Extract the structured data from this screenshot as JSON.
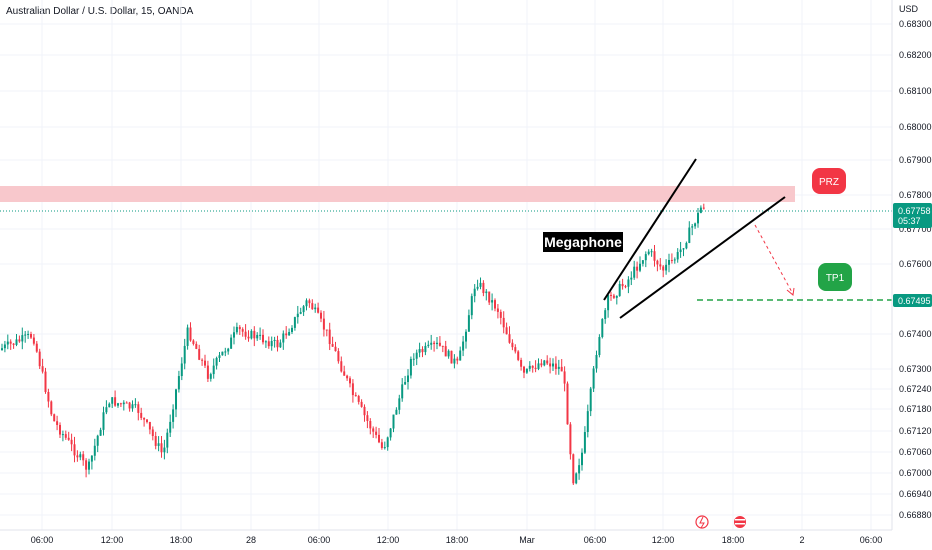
{
  "header": {
    "title": "Australian Dollar / U.S. Dollar, 15, OANDA",
    "currency": "USD"
  },
  "chart_data": {
    "type": "candlestick",
    "y_ticks": [
      "0.68300",
      "0.68200",
      "0.68100",
      "0.68000",
      "0.67900",
      "0.67800",
      "0.67700",
      "0.67600",
      "0.67400",
      "0.67300",
      "0.67240",
      "0.67180",
      "0.67120",
      "0.67060",
      "0.67000",
      "0.66940",
      "0.66880"
    ],
    "x_ticks": [
      "06:00",
      "12:00",
      "18:00",
      "28",
      "06:00",
      "12:00",
      "18:00",
      "Mar",
      "06:00",
      "12:00",
      "18:00",
      "2",
      "06:00"
    ],
    "price_label": {
      "value": "0.67758",
      "countdown": "05:37",
      "color": "#089981"
    },
    "tp_label": {
      "value": "0.67495",
      "color": "#089981"
    },
    "annotations": {
      "pattern": "Megaphone",
      "zone": "PRZ",
      "target": "TP1"
    },
    "colors": {
      "up": "#089981",
      "down": "#f23645",
      "zone": "#f8c8cc",
      "zone_tag": "#f23645",
      "tp": "#22a447"
    }
  }
}
